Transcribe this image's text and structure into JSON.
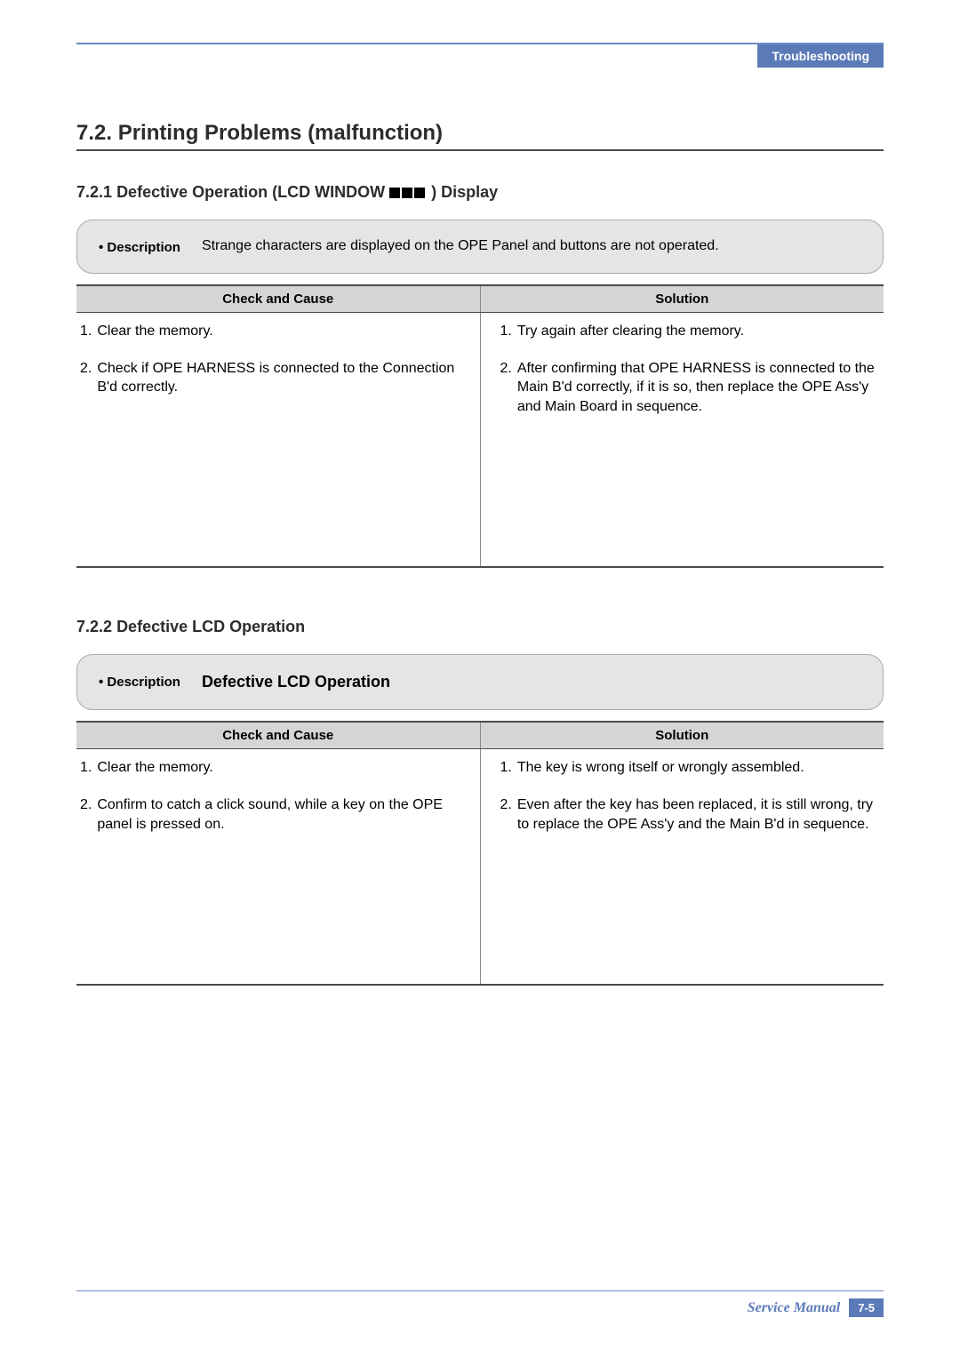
{
  "header": {
    "tab": "Troubleshooting"
  },
  "section": {
    "number": "7.2.",
    "title": "Printing Problems (malfunction)"
  },
  "sub1": {
    "number": "7.2.1",
    "title_prefix": "Defective Operation (LCD WINDOW ",
    "title_suffix": "    ) Display",
    "desc_label": "• Description",
    "desc_text": "Strange characters are displayed on the OPE Panel and buttons are not operated.",
    "table": {
      "h1": "Check and Cause",
      "h2": "Solution",
      "rows": [
        {
          "cc_n": "1.",
          "cc_t": "Clear the memory.",
          "so_n": "1.",
          "so_t": "Try again after clearing the memory."
        },
        {
          "cc_n": "2.",
          "cc_t": "Check if OPE HARNESS is connected to the Connection B'd correctly.",
          "so_n": "2.",
          "so_t": "After confirming that OPE HARNESS is connected to the Main B'd correctly, if it is so, then replace the OPE Ass'y and Main Board in sequence."
        }
      ]
    }
  },
  "sub2": {
    "number": "7.2.2",
    "title": "Defective LCD Operation",
    "desc_label": "• Description",
    "desc_text": "Defective LCD Operation",
    "table": {
      "h1": "Check and Cause",
      "h2": "Solution",
      "rows": [
        {
          "cc_n": "1.",
          "cc_t": "Clear the memory.",
          "so_n": "1.",
          "so_t": "The key is wrong itself or wrongly assembled."
        },
        {
          "cc_n": "2.",
          "cc_t": "Confirm to catch a click sound, while a key on the OPE panel is pressed on.",
          "so_n": "2.",
          "so_t": "Even after the key has been replaced, it is still wrong, try to replace the OPE  Ass'y and the Main B'd in sequence."
        }
      ]
    }
  },
  "footer": {
    "label": "Service Manual",
    "page": "7-5"
  }
}
